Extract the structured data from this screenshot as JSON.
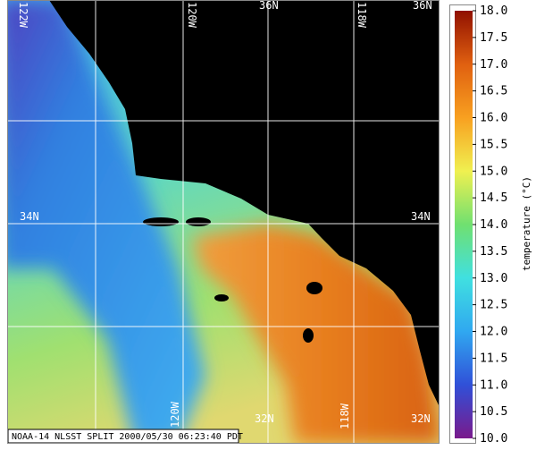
{
  "map": {
    "grid_labels": {
      "top": [
        "122W",
        "120W",
        "36N",
        "118W",
        "36N"
      ],
      "left": "34N",
      "right": "34N",
      "bottom": [
        "120W",
        "32N",
        "118W",
        "32N"
      ]
    },
    "footer": "NOAA-14 NLSST SPLIT 2000/05/30 06:23:40 PDT"
  },
  "colorbar": {
    "label": "temperature (°C)",
    "range": [
      10,
      18
    ],
    "colors": [
      "#7a1a8c",
      "#3050d8",
      "#30a8f0",
      "#40e0e0",
      "#70e070",
      "#f0f050",
      "#f8a020",
      "#e06010",
      "#901000"
    ],
    "ticks": [
      {
        "value": 10,
        "label": "10.0"
      },
      10.5,
      {
        "value": 11,
        "label": "11.0"
      },
      11.5,
      {
        "value": 12,
        "label": "12.0"
      },
      12.5,
      {
        "value": 13,
        "label": "13.0"
      },
      13.5,
      {
        "value": 14,
        "label": "14.0"
      },
      14.5,
      {
        "value": 15,
        "label": "15.0"
      },
      15.5,
      {
        "value": 16,
        "label": "16.0"
      },
      16.5,
      {
        "value": 17,
        "label": "17.0"
      },
      17.5,
      {
        "value": 18,
        "label": "18.0"
      }
    ]
  }
}
